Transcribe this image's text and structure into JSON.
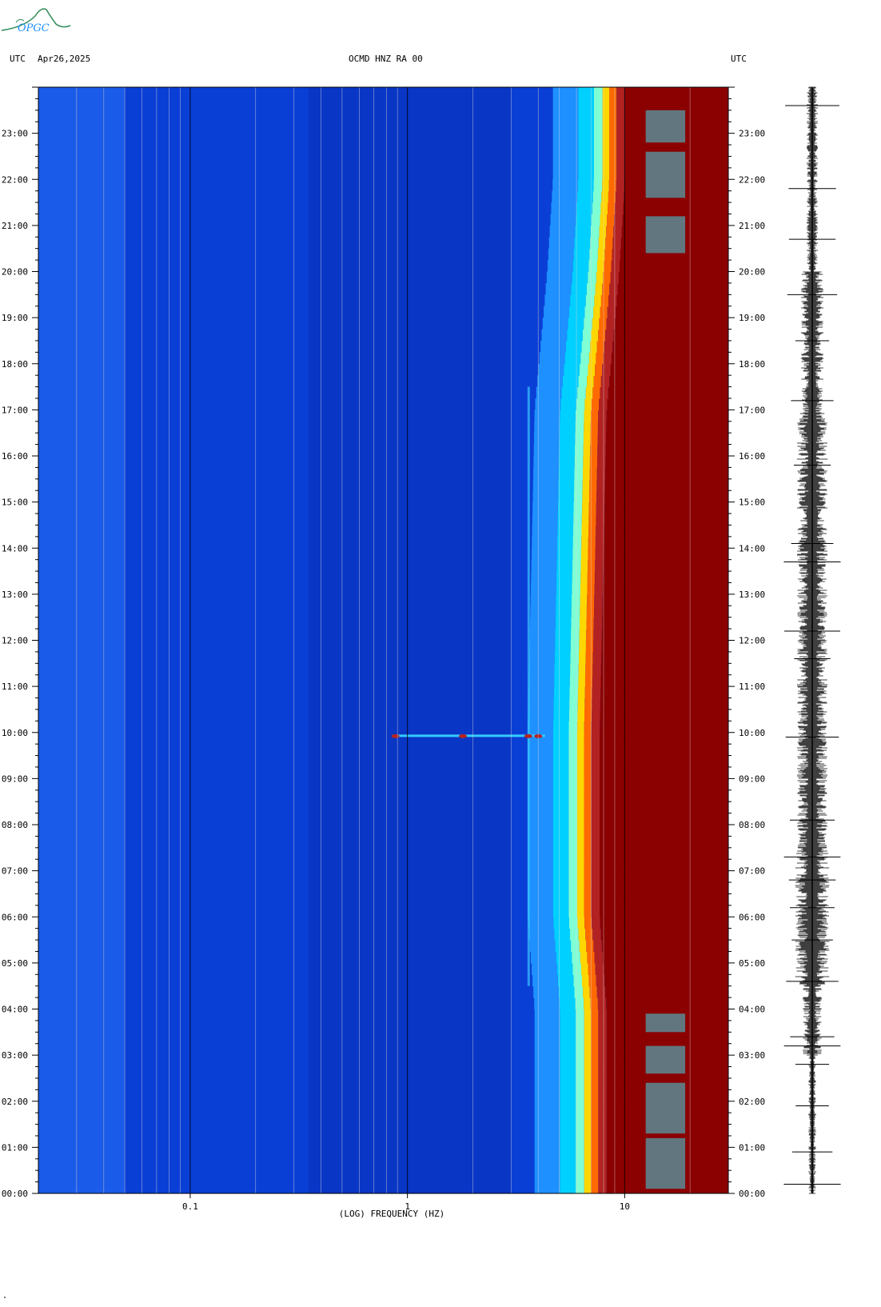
{
  "logo": {
    "text": "OPGC"
  },
  "header": {
    "left_tz": "UTC",
    "date": "Apr26,2025",
    "station": "OCMD HNZ RA 00",
    "right_tz": "UTC"
  },
  "colors": {
    "background_blue": "#0a3fd6",
    "dark_red": "#8b0000",
    "colormap": [
      "#00008b",
      "#0033ff",
      "#1e90ff",
      "#00e5ff",
      "#7fffd4",
      "#ffff00",
      "#ff8c00",
      "#b22222",
      "#8b0000"
    ]
  },
  "chart_data": {
    "type": "heatmap",
    "title": "",
    "xlabel": "(LOG) FREQUENCY (HZ)",
    "ylabel": "",
    "x_scale": "log",
    "xlim": [
      0.02,
      30
    ],
    "x_ticks": [
      {
        "value": 0.1,
        "label": "0.1"
      },
      {
        "value": 1,
        "label": "1"
      },
      {
        "value": 10,
        "label": "10"
      }
    ],
    "ylim_hours": [
      0,
      24
    ],
    "y_ticks": [
      "00:00",
      "01:00",
      "02:00",
      "03:00",
      "04:00",
      "05:00",
      "06:00",
      "07:00",
      "08:00",
      "09:00",
      "10:00",
      "11:00",
      "12:00",
      "13:00",
      "14:00",
      "15:00",
      "16:00",
      "17:00",
      "18:00",
      "19:00",
      "20:00",
      "21:00",
      "22:00",
      "23:00"
    ],
    "description_points": {
      "high_energy_onset_hz": [
        [
          0,
          7
        ],
        [
          4,
          7
        ],
        [
          6,
          6.5
        ],
        [
          10,
          6.5
        ],
        [
          17,
          7
        ],
        [
          20,
          8
        ],
        [
          22,
          8.5
        ],
        [
          24,
          8.5
        ]
      ],
      "narrow_band_hz": 3.6,
      "event_time_hours": 9.92,
      "event_freq_range_hz": [
        0.85,
        4.3
      ]
    }
  }
}
